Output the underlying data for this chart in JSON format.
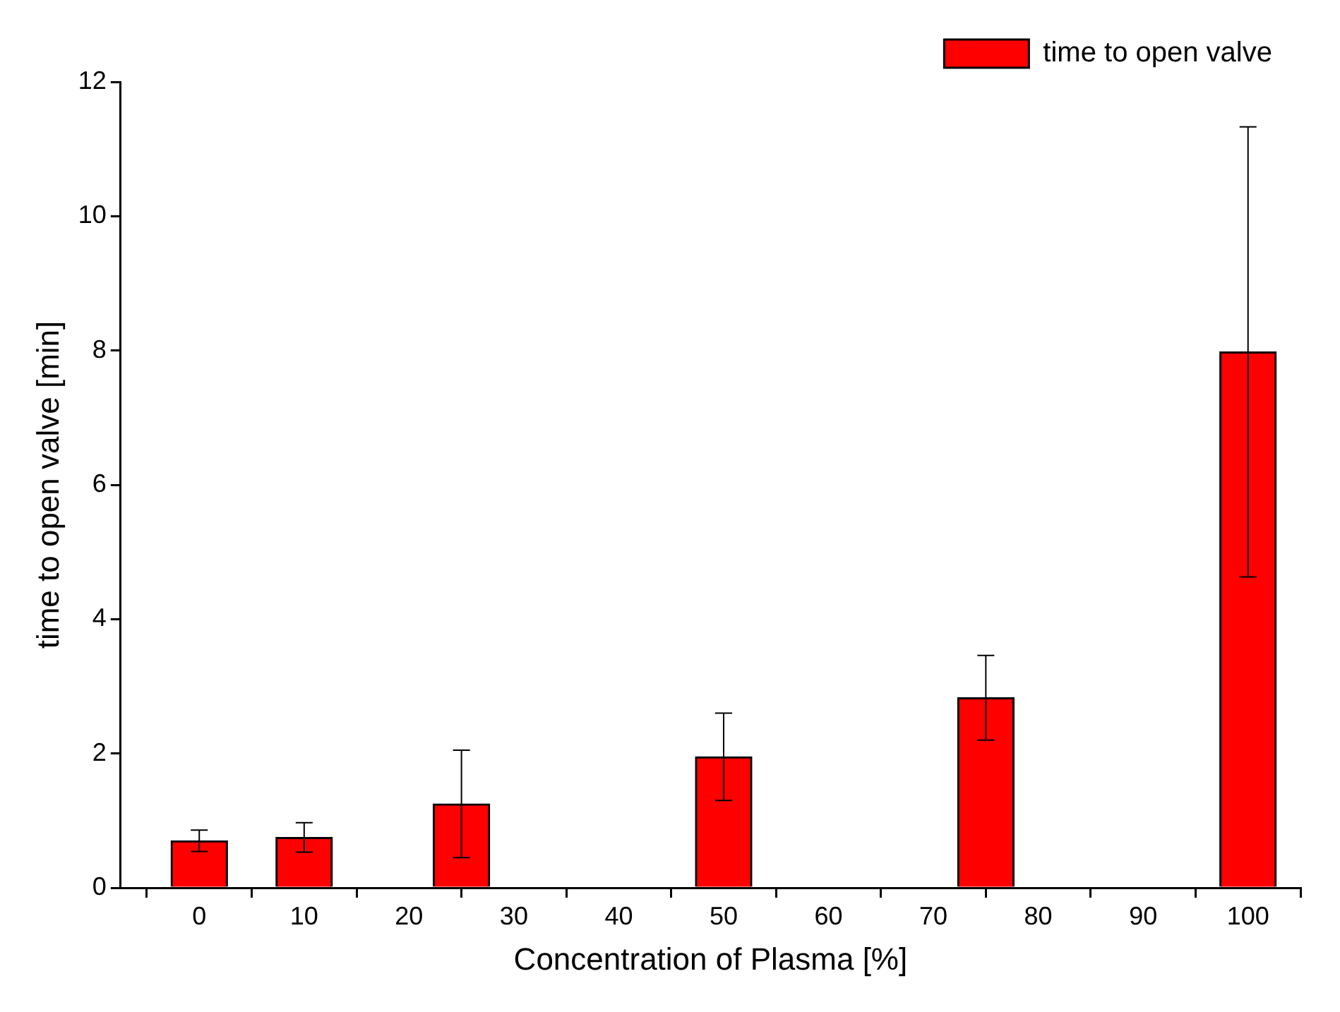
{
  "chart_data": {
    "type": "bar",
    "xlabel": "Concentration of Plasma [%]",
    "ylabel": "time to open valve [min]",
    "x": [
      0,
      10,
      25,
      50,
      75,
      100
    ],
    "series": [
      {
        "name": "time to open valve",
        "color": "#ff0000",
        "values": [
          0.7,
          0.75,
          1.25,
          1.95,
          2.83,
          7.98
        ],
        "errors": [
          0.16,
          0.22,
          0.8,
          0.65,
          0.63,
          3.35
        ]
      }
    ],
    "xlim": [
      -7.5,
      105
    ],
    "xticks": [
      0,
      10,
      20,
      30,
      40,
      50,
      60,
      70,
      80,
      90,
      100
    ],
    "ylim": [
      0,
      12
    ],
    "yticks": [
      0,
      2,
      4,
      6,
      8,
      10,
      12
    ],
    "grid": false,
    "legend": "top right"
  }
}
